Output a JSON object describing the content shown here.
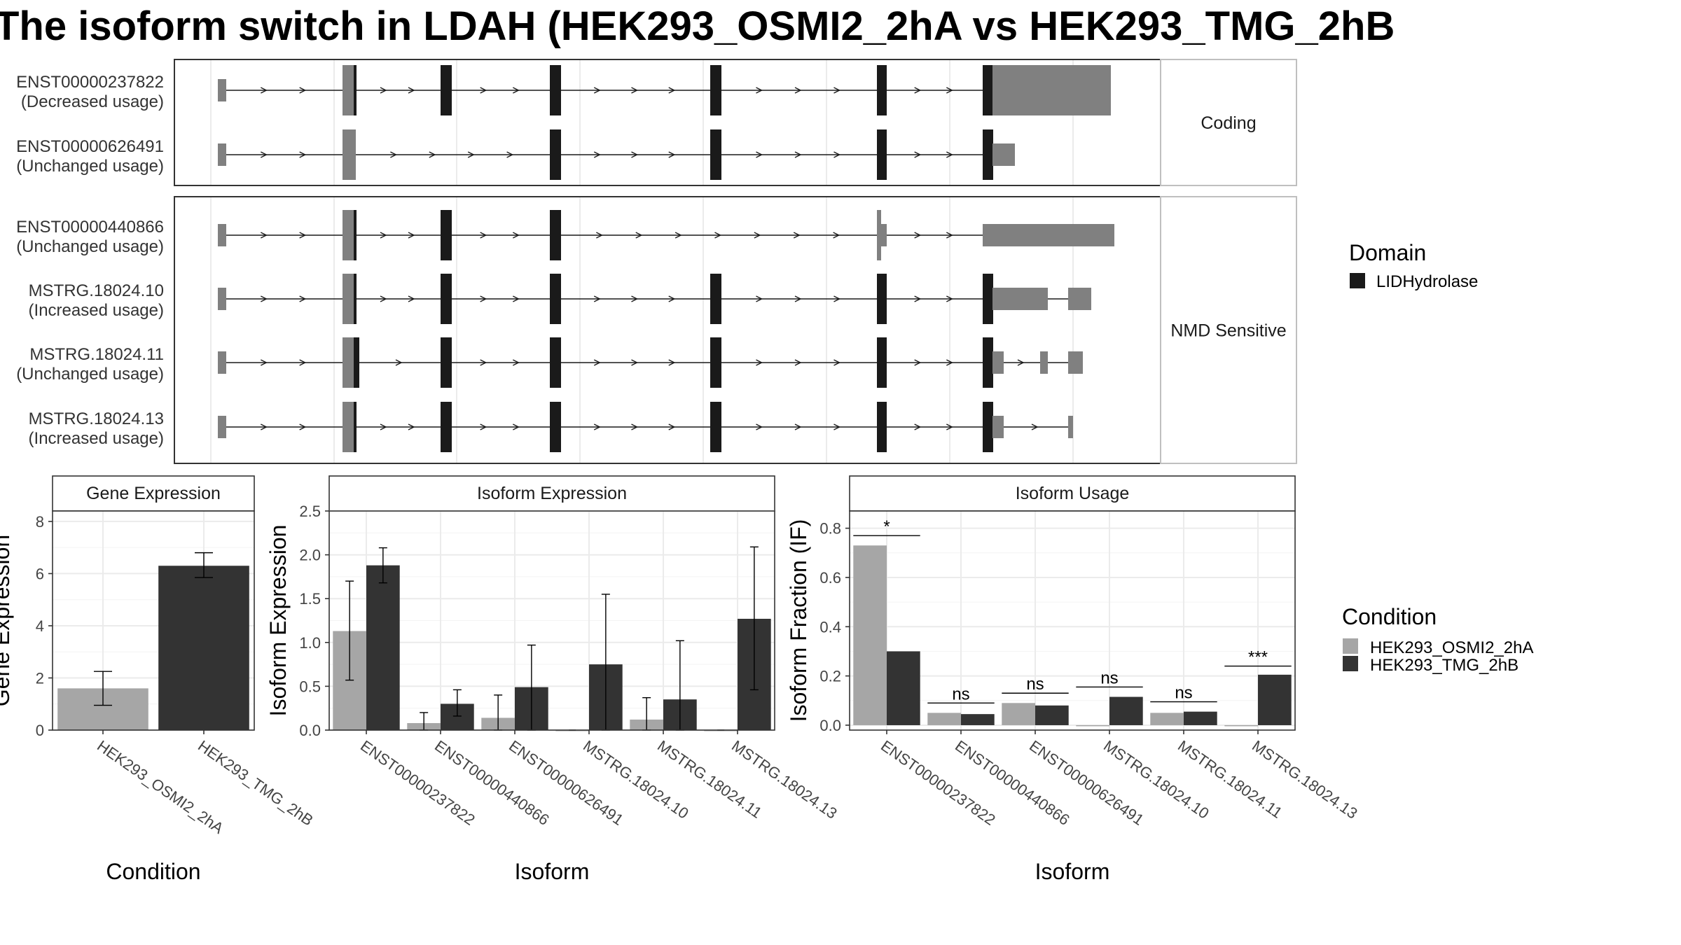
{
  "title": "The isoform switch in LDAH (HEK293_OSMI2_2hA vs HEK293_TMG_2hB",
  "colors": {
    "utr": "#808080",
    "domain": "#1a1a1a",
    "cond1": "#a6a6a6",
    "cond2": "#333333",
    "grid": "#ebebeb",
    "strip_bg": "#ffffff"
  },
  "structure": {
    "groups": [
      {
        "label": "Coding",
        "isoforms": [
          {
            "id": "ENST00000237822",
            "usage": "(Decreased usage)",
            "name": "row-enst00000237822"
          },
          {
            "id": "ENST00000626491",
            "usage": "(Unchanged usage)",
            "name": "row-enst00000626491"
          }
        ]
      },
      {
        "label": "NMD Sensitive",
        "isoforms": [
          {
            "id": "ENST00000440866",
            "usage": "(Unchanged usage)",
            "name": "row-enst00000440866"
          },
          {
            "id": "MSTRG.18024.10",
            "usage": "(Increased usage)",
            "name": "row-mstrg-18024-10"
          },
          {
            "id": "MSTRG.18024.11",
            "usage": "(Unchanged usage)",
            "name": "row-mstrg-18024-11"
          },
          {
            "id": "MSTRG.18024.13",
            "usage": "(Increased usage)",
            "name": "row-mstrg-18024-13"
          }
        ]
      }
    ]
  },
  "legends": {
    "domain_title": "Domain",
    "domain_items": [
      {
        "label": "LIDHydrolase",
        "color": "#1a1a1a"
      }
    ],
    "condition_title": "Condition",
    "condition_items": [
      {
        "label": "HEK293_OSMI2_2hA",
        "color": "#a6a6a6"
      },
      {
        "label": "HEK293_TMG_2hB",
        "color": "#333333"
      }
    ]
  },
  "chart_data": [
    {
      "type": "bar",
      "title": "Gene Expression",
      "xlabel": "Condition",
      "ylabel": "Gene Expression",
      "ylim": [
        0,
        8.4
      ],
      "yticks": [
        0,
        2,
        4,
        6,
        8
      ],
      "categories": [
        "HEK293_OSMI2_2hA",
        "HEK293_TMG_2hB"
      ],
      "values": [
        1.6,
        6.3
      ],
      "error_low": [
        0.95,
        5.85
      ],
      "error_high": [
        2.25,
        6.8
      ],
      "colors": [
        "#a6a6a6",
        "#333333"
      ]
    },
    {
      "type": "bar",
      "title": "Isoform Expression",
      "xlabel": "Isoform",
      "ylabel": "Isoform Expression",
      "ylim": [
        0,
        2.5
      ],
      "yticks": [
        0.0,
        0.5,
        1.0,
        1.5,
        2.0,
        2.5
      ],
      "categories": [
        "ENST00000237822",
        "ENST00000440866",
        "ENST00000626491",
        "MSTRG.18024.10",
        "MSTRG.18024.11",
        "MSTRG.18024.13"
      ],
      "series": [
        {
          "name": "HEK293_OSMI2_2hA",
          "values": [
            1.13,
            0.08,
            0.14,
            0.0,
            0.12,
            0.0
          ],
          "low": [
            0.57,
            0.0,
            0.0,
            0.0,
            0.0,
            0.0
          ],
          "high": [
            1.7,
            0.2,
            0.4,
            0.0,
            0.37,
            0.0
          ]
        },
        {
          "name": "HEK293_TMG_2hB",
          "values": [
            1.88,
            0.3,
            0.49,
            0.75,
            0.35,
            1.27
          ],
          "low": [
            1.68,
            0.16,
            0.0,
            0.0,
            0.0,
            0.46
          ],
          "high": [
            2.08,
            0.46,
            0.97,
            1.55,
            1.02,
            2.09
          ]
        }
      ]
    },
    {
      "type": "bar",
      "title": "Isoform Usage",
      "xlabel": "Isoform",
      "ylabel": "Isoform Fraction (IF)",
      "ylim": [
        -0.02,
        0.87
      ],
      "yticks": [
        0.0,
        0.2,
        0.4,
        0.6,
        0.8
      ],
      "categories": [
        "ENST00000237822",
        "ENST00000440866",
        "ENST00000626491",
        "MSTRG.18024.10",
        "MSTRG.18024.11",
        "MSTRG.18024.13"
      ],
      "series": [
        {
          "name": "HEK293_OSMI2_2hA",
          "values": [
            0.73,
            0.05,
            0.09,
            0.0,
            0.05,
            0.0
          ]
        },
        {
          "name": "HEK293_TMG_2hB",
          "values": [
            0.3,
            0.045,
            0.08,
            0.115,
            0.055,
            0.205
          ]
        }
      ],
      "significance": [
        "*",
        "ns",
        "ns",
        "ns",
        "ns",
        "***"
      ],
      "sig_line": [
        0.77,
        0.09,
        0.13,
        0.155,
        0.095,
        0.24
      ]
    }
  ]
}
